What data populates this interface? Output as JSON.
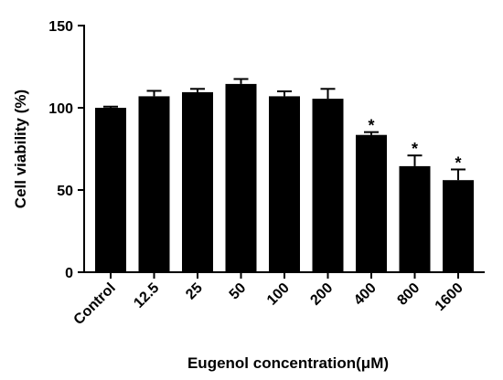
{
  "chart_data": {
    "type": "bar",
    "title": "",
    "xlabel": "Eugenol concentration(μM)",
    "ylabel": "Cell viability (%)",
    "ylim": [
      0,
      150
    ],
    "yticks": [
      0,
      50,
      100,
      150
    ],
    "categories": [
      "Control",
      "12.5",
      "25",
      "50",
      "100",
      "200",
      "400",
      "800",
      "1600"
    ],
    "values": [
      100,
      107,
      109.5,
      114.5,
      107,
      105.5,
      83.5,
      64.5,
      56
    ],
    "errors": [
      0.7,
      3.3,
      2,
      3,
      3,
      6,
      1.7,
      6.5,
      6.5
    ],
    "significance": [
      "",
      "",
      "",
      "",
      "",
      "",
      "*",
      "*",
      "*"
    ],
    "bar_color": "#000000",
    "grid": false,
    "legend": "none"
  }
}
